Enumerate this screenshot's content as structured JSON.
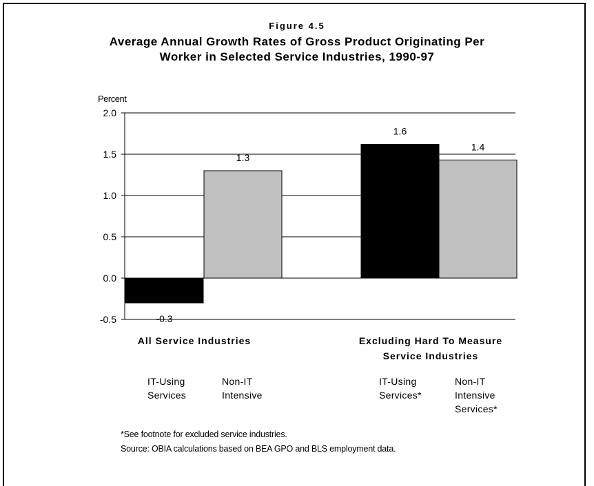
{
  "figure_label": "Figure 4.5",
  "chart_data": {
    "type": "bar",
    "title_lines": [
      "Average Annual Growth Rates of Gross Product Originating Per",
      "Worker in Selected Service Industries, 1990-97"
    ],
    "ylabel": "Percent",
    "ylim": [
      -0.5,
      2.0
    ],
    "yticks": [
      "2.0",
      "1.5",
      "1.0",
      "0.5",
      "0.0",
      "-0.5"
    ],
    "grid": true,
    "groups": [
      {
        "label_lines": [
          "All Service Industries"
        ],
        "bars": [
          {
            "value": -0.3,
            "label": "-0.3",
            "color": "#000000",
            "series_lines": [
              "IT-Using",
              "Services"
            ]
          },
          {
            "value": 1.3,
            "label": "1.3",
            "color": "#c0c0c0",
            "series_lines": [
              "Non-IT",
              "Intensive"
            ]
          }
        ]
      },
      {
        "label_lines": [
          "Excluding Hard To Measure",
          "Service Industries"
        ],
        "bars": [
          {
            "value": 1.62,
            "label": "1.6",
            "color": "#000000",
            "series_lines": [
              "IT-Using",
              "Services*"
            ]
          },
          {
            "value": 1.43,
            "label": "1.4",
            "color": "#c0c0c0",
            "series_lines": [
              "Non-IT",
              "Intensive",
              "Services*"
            ]
          }
        ]
      }
    ]
  },
  "footnotes": [
    "*See footnote for excluded service industries.",
    "Source: OBIA calculations based on BEA GPO and BLS employment data."
  ]
}
